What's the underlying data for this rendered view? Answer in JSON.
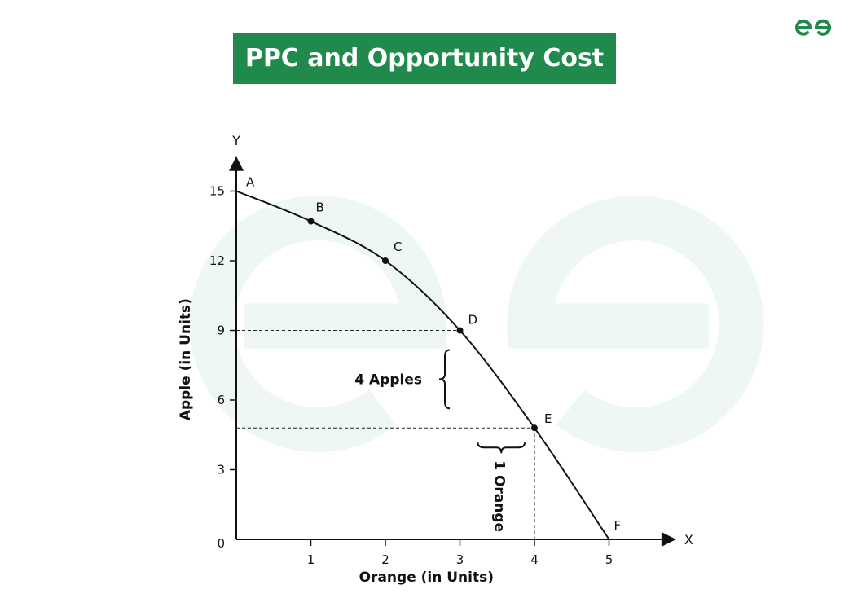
{
  "title": "PPC and Opportunity Cost",
  "brand_color": "#1f8a4c",
  "logo": {
    "icon": "gfg-logo-icon",
    "color": "#1f8a4c"
  },
  "chart_data": {
    "type": "line",
    "title": "PPC and Opportunity Cost",
    "xlabel": "Orange (in Units)",
    "ylabel": "Apple (in Units)",
    "x_axis_letter": "X",
    "y_axis_letter": "Y",
    "xlim": [
      0,
      5.9
    ],
    "ylim": [
      0,
      16.5
    ],
    "x_ticks": [
      1,
      2,
      3,
      4,
      5
    ],
    "y_ticks": [
      0,
      3,
      6,
      9,
      12,
      15
    ],
    "grid": false,
    "series": [
      {
        "points": [
          {
            "label": "A",
            "x": 0,
            "y": 15
          },
          {
            "label": "B",
            "x": 1,
            "y": 13.7
          },
          {
            "label": "C",
            "x": 2,
            "y": 12
          },
          {
            "label": "D",
            "x": 3,
            "y": 9
          },
          {
            "label": "E",
            "x": 4,
            "y": 4.8
          },
          {
            "label": "F",
            "x": 5,
            "y": 0
          }
        ]
      }
    ],
    "annotations": {
      "apples": "4 Apples",
      "orange": "1 Orange"
    }
  }
}
